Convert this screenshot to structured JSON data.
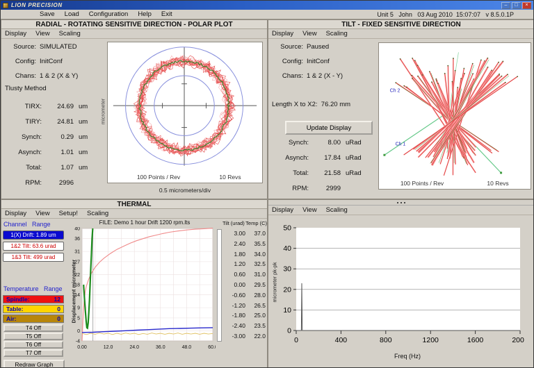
{
  "win": {
    "title": "LION PRECISION",
    "menu": [
      "Save",
      "Load",
      "Configuration",
      "Help",
      "Exit"
    ],
    "status": "Unit 5   John   03 Aug 2010  15:07:07   v 8.5.0.1P",
    "controls": {
      "minimize": "–",
      "maximize": "□",
      "close": "×"
    }
  },
  "colors": {
    "accent_blue": "#2222cc",
    "channel_box_bg": "#0a0ad0",
    "tilt_text_red": "#cc0000",
    "spindle_bg": "#ee1111",
    "table_bg": "#ffd400",
    "air_bg": "#b8860b",
    "trace_red": "#e03030",
    "avg_green": "#2e8b2e",
    "circle_blue": "#8890dd"
  },
  "panels": {
    "radial": {
      "title": "RADIAL - ROTATING SENSITIVE DIRECTION - POLAR PLOT",
      "menu": [
        "Display",
        "View",
        "Scaling"
      ],
      "info": {
        "source_label": "Source:",
        "source": "SIMULATED",
        "config_label": "Config:",
        "config": "InitConf",
        "chans_label": "Chans:",
        "chans": "1 & 2 (X & Y)",
        "method": "Tlusty Method"
      },
      "stats": [
        {
          "l": "TIRX:",
          "v": "24.69",
          "u": "um"
        },
        {
          "l": "TIRY:",
          "v": "24.81",
          "u": "um"
        },
        {
          "l": "Synch:",
          "v": "0.29",
          "u": "um"
        },
        {
          "l": "Asynch:",
          "v": "1.01",
          "u": "um"
        },
        {
          "l": "Total:",
          "v": "1.07",
          "u": "um"
        },
        {
          "l": "RPM:",
          "v": "2996",
          "u": ""
        }
      ]
    },
    "tilt": {
      "title": "TILT - FIXED SENSITIVE DIRECTION",
      "menu": [
        "Display",
        "View",
        "Scaling"
      ],
      "info": {
        "source_label": "Source:",
        "source": "Paused",
        "config_label": "Config:",
        "config": "InitConf",
        "chans_label": "Chans:",
        "chans": "1 & 2 (X - Y)"
      },
      "length_label": "Length X to X2:",
      "length_value": "76.20 mm",
      "button": "Update Display",
      "stats": [
        {
          "l": "Synch:",
          "v": "8.00",
          "u": "uRad"
        },
        {
          "l": "Asynch:",
          "v": "17.84",
          "u": "uRad"
        },
        {
          "l": "Total:",
          "v": "21.58",
          "u": "uRad"
        },
        {
          "l": "RPM:",
          "v": "2999",
          "u": ""
        }
      ]
    },
    "thermal": {
      "title": "THERMAL",
      "menu": [
        "Display",
        "View",
        "Setup!",
        "Scaling"
      ],
      "ch_header": "Channel   Range",
      "channels": [
        "1(X) Drift: 1.89 um",
        "1&2 Tilt: 63.6 urad",
        "1&3 Tilt: 499 urad"
      ],
      "temp_header": "Temperature   Range",
      "temps": [
        {
          "name": "Spindle:",
          "value": "12"
        },
        {
          "name": "Table:",
          "value": "0"
        },
        {
          "name": "Air:",
          "value": "0"
        }
      ],
      "tbtns": [
        "T4 Off",
        "T5 Off",
        "T6 Off",
        "T7 Off"
      ],
      "redraw": "Redraw Graph",
      "file": "FILE: Demo 1 hour Drift 1200 rpm.lts",
      "cols": {
        "tilt": "Tilt (urad)",
        "temp": "Temp (C)"
      },
      "tilt_values": [
        "3.00",
        "2.40",
        "1.80",
        "1.20",
        "0.60",
        "0.00",
        "-0.60",
        "-1.20",
        "-1.80",
        "-2.40",
        "-3.00"
      ],
      "temp_values": [
        "37.0",
        "35.5",
        "34.0",
        "32.5",
        "31.0",
        "29.5",
        "28.0",
        "26.5",
        "25.0",
        "23.5",
        "22.0"
      ]
    },
    "spectrum": {
      "menu": [
        "Display",
        "View",
        "Scaling"
      ]
    }
  },
  "chart_data": [
    {
      "id": "polar-plot",
      "type": "polar",
      "ylabel": "micrometer",
      "scale_label": "0.5 micrometers/div",
      "annotations": [
        "100 Points / Rev",
        "10 Revs"
      ],
      "points_per_rev": 100,
      "revs": 10,
      "inner_circle_r": 44,
      "outer_circle_r": 86,
      "mean_ring_r": 65,
      "ring_noise": 11,
      "trace_color": "#e03030",
      "trace_color2": "#f07070",
      "avg_color": "#2e8b2e",
      "circle_color": "#8890dd"
    },
    {
      "id": "tilt-fan",
      "type": "3d-tilt-orbit",
      "annotations": [
        "100 Points / Rev",
        "10 Revs"
      ],
      "line_count": 46,
      "trace_color": "#ffaaaa",
      "core_color": "#d42222",
      "green_color": "#3f9b3f",
      "axis_color": "#63c887",
      "marker_color": "#4a5d23",
      "axis_labels": [
        {
          "text": "Ch 2",
          "x": 16,
          "y": 70
        },
        {
          "text": "Ch 1",
          "x": 24,
          "y": 148
        }
      ]
    },
    {
      "id": "thermal-trend",
      "type": "line",
      "ylabel": "Displacement micrometer",
      "xlim": [
        0,
        60
      ],
      "ylim": [
        -4,
        40
      ],
      "x_ticks": [
        "0.00",
        "12.0",
        "24.0",
        "36.0",
        "48.0",
        "60.0"
      ],
      "y_ticks": [
        40,
        36,
        31,
        27,
        22,
        18,
        14,
        9,
        5,
        0,
        -4
      ],
      "cursor_x": 5,
      "series": [
        {
          "name": "spindle-temp",
          "color": "#f08a8a",
          "width": 1.1,
          "points": [
            [
              0,
              -4
            ],
            [
              0.5,
              6
            ],
            [
              1,
              12
            ],
            [
              1.5,
              15.5
            ],
            [
              2,
              17.5
            ],
            [
              3,
              20
            ],
            [
              4,
              22
            ],
            [
              5,
              23.5
            ],
            [
              6,
              24.8
            ],
            [
              8,
              26.8
            ],
            [
              10,
              28.3
            ],
            [
              13,
              30.2
            ],
            [
              16,
              31.8
            ],
            [
              19,
              33
            ],
            [
              22,
              34.2
            ],
            [
              25,
              35.2
            ],
            [
              28,
              36
            ],
            [
              31,
              36.8
            ],
            [
              34,
              37.4
            ],
            [
              37,
              38
            ],
            [
              40,
              38.5
            ],
            [
              44,
              39
            ],
            [
              48,
              39.4
            ],
            [
              52,
              39.7
            ],
            [
              56,
              39.9
            ],
            [
              60,
              40.1
            ]
          ]
        },
        {
          "name": "drift-spike",
          "color": "#1e8c1e",
          "width": 2.2,
          "points": [
            [
              0.7,
              18
            ],
            [
              1.1,
              13
            ],
            [
              1.5,
              8
            ],
            [
              1.9,
              3.5
            ],
            [
              2.2,
              1.2
            ],
            [
              2.5,
              1
            ],
            [
              2.8,
              3
            ],
            [
              3.1,
              7
            ],
            [
              3.4,
              12
            ],
            [
              3.7,
              18
            ],
            [
              4,
              24
            ],
            [
              4.3,
              30
            ],
            [
              4.6,
              36
            ],
            [
              4.9,
              40
            ]
          ]
        },
        {
          "name": "drift-x",
          "color": "#2828cc",
          "width": 1.4,
          "points": [
            [
              0,
              -0.7
            ],
            [
              5,
              -0.6
            ],
            [
              10,
              -0.4
            ],
            [
              15,
              -0.2
            ],
            [
              20,
              0
            ],
            [
              25,
              0.2
            ],
            [
              30,
              0.4
            ],
            [
              35,
              0.6
            ],
            [
              40,
              0.8
            ],
            [
              45,
              0.9
            ],
            [
              50,
              1
            ],
            [
              55,
              1.1
            ],
            [
              60,
              1.2
            ]
          ]
        },
        {
          "name": "table-temp",
          "color": "#e0c060",
          "width": 0.9,
          "points": [
            [
              0,
              -1.1
            ],
            [
              2,
              -1.5
            ],
            [
              4,
              -1
            ],
            [
              6,
              -1.4
            ],
            [
              8,
              -0.9
            ],
            [
              10,
              -1.3
            ],
            [
              12,
              -1
            ],
            [
              14,
              -1.5
            ],
            [
              16,
              -1
            ],
            [
              18,
              -1.4
            ],
            [
              20,
              -0.9
            ],
            [
              22,
              -1.3
            ],
            [
              24,
              -1
            ],
            [
              26,
              -1.5
            ],
            [
              28,
              -1.1
            ],
            [
              30,
              -1.4
            ],
            [
              32,
              -0.9
            ],
            [
              34,
              -1.3
            ],
            [
              36,
              -1
            ],
            [
              38,
              -1.4
            ],
            [
              40,
              -1
            ],
            [
              42,
              -1.3
            ],
            [
              44,
              -0.9
            ],
            [
              46,
              -1.4
            ],
            [
              48,
              -1
            ],
            [
              50,
              -1.3
            ],
            [
              52,
              -1
            ],
            [
              54,
              -1.4
            ],
            [
              56,
              -1
            ],
            [
              58,
              -1.3
            ],
            [
              60,
              -1.1
            ]
          ]
        }
      ]
    },
    {
      "id": "freq-spectrum",
      "type": "line",
      "xlabel": "Freq (Hz)",
      "ylabel": "micrometer pk-pk",
      "xlim": [
        0,
        2000
      ],
      "ylim": [
        0,
        50
      ],
      "x_ticks": [
        0,
        400,
        800,
        1200,
        1600,
        2000
      ],
      "y_ticks": [
        50,
        40,
        30,
        20,
        10,
        0
      ],
      "peak": {
        "freq": 50,
        "amp": 23
      },
      "series": [
        {
          "name": "spectrum",
          "color": "#555555",
          "width": 1,
          "points": [
            [
              0,
              0
            ],
            [
              46,
              0
            ],
            [
              50,
              23
            ],
            [
              54,
              0
            ],
            [
              2000,
              0
            ]
          ]
        }
      ]
    }
  ]
}
